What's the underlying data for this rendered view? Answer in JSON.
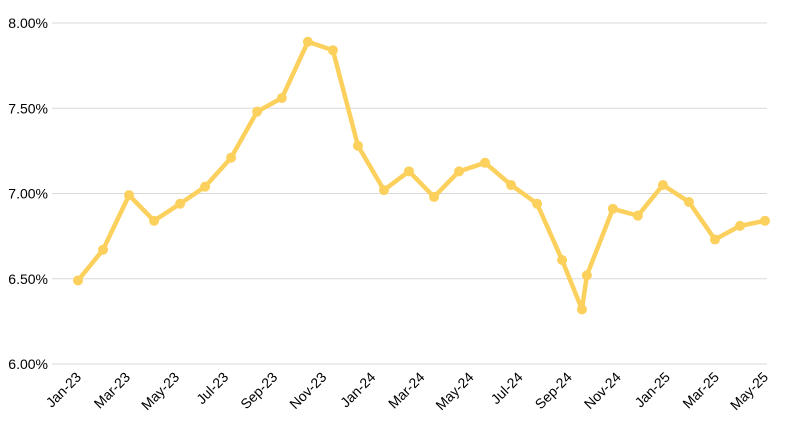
{
  "chart_data": {
    "type": "line",
    "x": [
      0,
      1.02,
      2.08,
      3.1,
      4.16,
      5.18,
      6.24,
      7.3,
      8.31,
      9.37,
      10.39,
      11.41,
      12.47,
      13.49,
      14.51,
      15.53,
      16.59,
      17.65,
      18.71,
      19.73,
      20.54,
      20.74,
      21.8,
      22.82,
      23.84,
      24.9,
      25.96,
      26.98,
      28
    ],
    "series": [
      {
        "color": "#fcd05c",
        "values": [
          6.49,
          6.67,
          6.99,
          6.84,
          6.94,
          7.04,
          7.21,
          7.48,
          7.56,
          7.89,
          7.84,
          7.28,
          7.02,
          7.13,
          6.98,
          7.13,
          7.18,
          7.05,
          6.94,
          6.61,
          6.32,
          6.52,
          6.91,
          6.87,
          7.05,
          6.95,
          6.73,
          6.81,
          6.84
        ]
      }
    ],
    "xlim": [
      0,
      28
    ],
    "xticks": [
      {
        "value": 0,
        "label": "Jan-23"
      },
      {
        "value": 2,
        "label": "Mar-23"
      },
      {
        "value": 4,
        "label": "May-23"
      },
      {
        "value": 6,
        "label": "Jul-23"
      },
      {
        "value": 8,
        "label": "Sep-23"
      },
      {
        "value": 10,
        "label": "Nov-23"
      },
      {
        "value": 12,
        "label": "Jan-24"
      },
      {
        "value": 14,
        "label": "Mar-24"
      },
      {
        "value": 16,
        "label": "May-24"
      },
      {
        "value": 18,
        "label": "Jul-24"
      },
      {
        "value": 20,
        "label": "Sep-24"
      },
      {
        "value": 22,
        "label": "Nov-24"
      },
      {
        "value": 24,
        "label": "Jan-25"
      },
      {
        "value": 26,
        "label": "Mar-25"
      },
      {
        "value": 28,
        "label": "May-25"
      }
    ],
    "ylim": [
      6,
      8
    ],
    "yticks": [
      {
        "value": 6,
        "label": "6.00%"
      },
      {
        "value": 6.5,
        "label": "6.50%"
      },
      {
        "value": 7,
        "label": "7.00%"
      },
      {
        "value": 7.5,
        "label": "7.50%"
      },
      {
        "value": 8,
        "label": "8.00%"
      }
    ],
    "grid": true
  }
}
